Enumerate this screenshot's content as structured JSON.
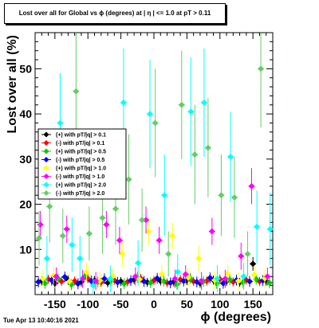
{
  "title": "Lost over all for Global vs ϕ (degrees) at | η | <= 1.0 at pT > 0.11",
  "timestamp": "Tue Apr 13 10:40:16 2021",
  "chart_data": {
    "type": "scatter",
    "xlabel": "ϕ (degrees)",
    "ylabel": "Lost over all (%)",
    "xlim": [
      -180,
      180
    ],
    "ylim": [
      0,
      58
    ],
    "xticks": [
      -150,
      -100,
      -50,
      0,
      50,
      100,
      150
    ],
    "yticks": [
      10,
      20,
      30,
      40,
      50
    ],
    "legend_position": "left-middle",
    "series": [
      {
        "name": "(+) with pT/|q| > 0.1",
        "color": "#000000",
        "x": [
          -170,
          -150,
          -130,
          -110,
          -90,
          -70,
          -50,
          -30,
          -10,
          10,
          30,
          50,
          70,
          90,
          110,
          130,
          150,
          170
        ],
        "y": [
          3.0,
          2.5,
          3.2,
          2.8,
          3.1,
          2.6,
          2.9,
          3.3,
          2.7,
          3.0,
          2.8,
          3.1,
          2.5,
          3.2,
          2.9,
          2.7,
          6.8,
          3.0
        ],
        "err": [
          1,
          1,
          1,
          1,
          1,
          1,
          1,
          1,
          1,
          1,
          1,
          1,
          1,
          1,
          1,
          1,
          1.5,
          1
        ]
      },
      {
        "name": "(-) with pT/|q| > 0.1",
        "color": "#ff0000",
        "x": [
          -160,
          -140,
          -120,
          -100,
          -80,
          -60,
          -40,
          -20,
          0,
          20,
          40,
          60,
          80,
          100,
          120,
          140,
          160
        ],
        "y": [
          3.4,
          2.9,
          3.0,
          3.5,
          2.7,
          3.2,
          2.8,
          3.6,
          3.1,
          2.6,
          3.3,
          2.9,
          3.0,
          3.4,
          2.8,
          3.2,
          2.9
        ],
        "err": [
          1,
          1,
          1,
          1,
          1,
          1,
          1,
          1,
          1,
          1,
          1,
          1,
          1,
          1,
          1,
          1,
          1
        ]
      },
      {
        "name": "(+) with pT/|q| > 0.5",
        "color": "#00cc00",
        "x": [
          -165,
          -145,
          -125,
          -105,
          -85,
          -65,
          -45,
          -25,
          -5,
          15,
          35,
          55,
          75,
          95,
          115,
          135,
          155,
          175
        ],
        "y": [
          2.5,
          3.5,
          2.2,
          4.0,
          2.8,
          3.1,
          2.4,
          3.8,
          2.6,
          3.0,
          2.3,
          3.6,
          2.9,
          2.5,
          3.3,
          2.7,
          3.4,
          2.6
        ],
        "err": [
          1.2,
          1.2,
          1.2,
          1.2,
          1.2,
          1.2,
          1.2,
          1.2,
          1.2,
          1.2,
          1.2,
          1.2,
          1.2,
          1.2,
          1.2,
          1.2,
          1.2,
          1.2
        ]
      },
      {
        "name": "(-) with pT/|q| > 0.5",
        "color": "#0000ff",
        "x": [
          -175,
          -155,
          -135,
          -115,
          -95,
          -75,
          -55,
          -35,
          -15,
          5,
          25,
          45,
          65,
          85,
          105,
          125,
          145,
          165
        ],
        "y": [
          2.8,
          3.2,
          3.9,
          2.4,
          3.0,
          3.5,
          2.7,
          3.1,
          2.9,
          3.6,
          2.6,
          3.0,
          2.8,
          3.7,
          2.5,
          3.2,
          2.9,
          3.1
        ],
        "err": [
          1.2,
          1.2,
          1.2,
          1.2,
          1.2,
          1.2,
          1.2,
          1.2,
          1.2,
          1.2,
          1.2,
          1.2,
          1.2,
          1.2,
          1.2,
          1.2,
          1.2,
          1.2
        ]
      },
      {
        "name": "(+) with pT/|q| > 1.0",
        "color": "#ffff00",
        "x": [
          -168,
          -152,
          -128,
          -102,
          -82,
          -62,
          -48,
          -22,
          -8,
          12,
          28,
          52,
          68,
          92,
          112,
          128,
          152,
          168
        ],
        "y": [
          3.5,
          4.2,
          2.9,
          5.0,
          3.1,
          4.0,
          9.0,
          3.4,
          14.0,
          4.5,
          13.0,
          3.8,
          8.0,
          3.2,
          4.6,
          3.0,
          4.4,
          3.6
        ],
        "err": [
          2,
          2,
          2,
          2,
          2,
          2,
          3,
          2,
          3,
          2,
          3,
          2,
          3,
          2,
          2,
          2,
          2,
          2
        ]
      },
      {
        "name": "(-) with pT/|q| > 1.0",
        "color": "#ff00ff",
        "x": [
          -172,
          -148,
          -132,
          -108,
          -88,
          -72,
          -52,
          -28,
          -12,
          8,
          32,
          48,
          72,
          88,
          108,
          132,
          148,
          172
        ],
        "y": [
          15.5,
          4.0,
          14.5,
          3.5,
          3.0,
          15.5,
          12.0,
          4.0,
          16.5,
          12.0,
          3.5,
          4.5,
          3.0,
          14.0,
          3.5,
          8.5,
          24.0,
          4.0
        ],
        "err": [
          3,
          2,
          3,
          2,
          2,
          3,
          3,
          2,
          3,
          3,
          2,
          2,
          2,
          3,
          2,
          3,
          4,
          2
        ]
      },
      {
        "name": "(+) with pT/|q| > 2.0",
        "color": "#00ffff",
        "x": [
          -162,
          -142,
          -124,
          -112,
          -92,
          -66,
          -46,
          -24,
          -6,
          16,
          36,
          56,
          76,
          96,
          116,
          136,
          156,
          176
        ],
        "y": [
          8.0,
          38.0,
          11.0,
          8.0,
          2.0,
          3.5,
          42.5,
          7.0,
          40.0,
          22.0,
          5.0,
          40.5,
          42.5,
          3.5,
          30.5,
          4.0,
          15.0,
          14.5
        ],
        "err": [
          5,
          11,
          6,
          5,
          2,
          3,
          12,
          5,
          12,
          9,
          4,
          12,
          12,
          3,
          10,
          3,
          8,
          8
        ]
      },
      {
        "name": "(-) with pT/|q| > 2.0",
        "color": "#66cc66",
        "x": [
          -174,
          -158,
          -138,
          -118,
          -98,
          -78,
          -58,
          -38,
          -18,
          2,
          22,
          42,
          62,
          82,
          102,
          122,
          142,
          162
        ],
        "y": [
          12.5,
          19.5,
          13.0,
          45.0,
          13.5,
          17.0,
          19.0,
          25.5,
          16.5,
          38.0,
          9.0,
          42.0,
          31.0,
          32.5,
          22.0,
          21.5,
          9.0,
          50.0
        ],
        "err": [
          6,
          8,
          6,
          13,
          6,
          8,
          8,
          10,
          7,
          12,
          5,
          12,
          11,
          11,
          9,
          9,
          5,
          13
        ]
      }
    ]
  }
}
